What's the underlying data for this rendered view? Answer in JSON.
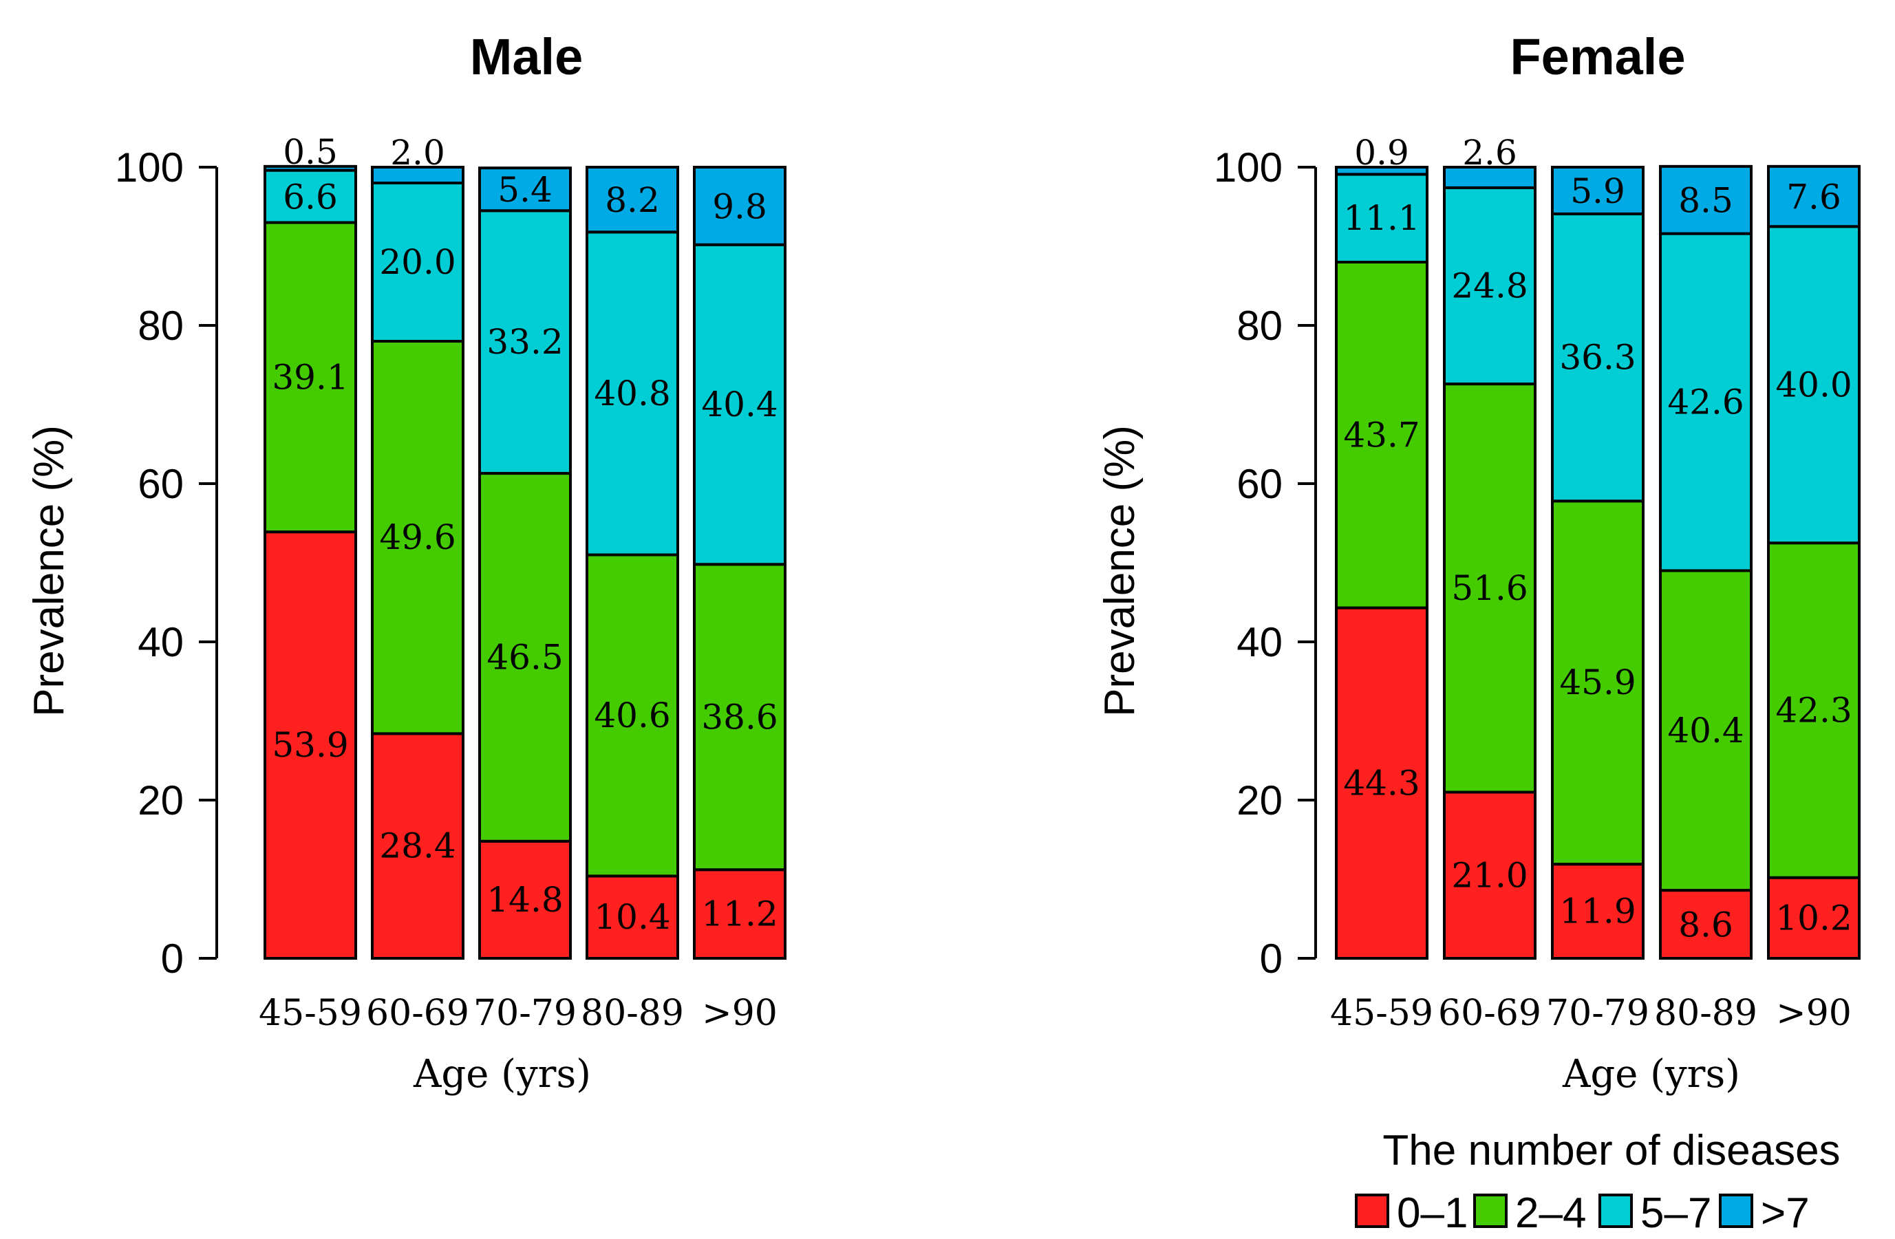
{
  "legend": {
    "title": "The number of diseases",
    "items": [
      {
        "label": "0–1",
        "color": "#ff2020"
      },
      {
        "label": "2–4",
        "color": "#44cc00"
      },
      {
        "label": "5–7",
        "color": "#00cdd4"
      },
      {
        "label": ">7",
        "color": "#00aae4"
      }
    ]
  },
  "chart_data": [
    {
      "type": "bar",
      "stacked": true,
      "title": "Male",
      "xlabel": "Age (yrs)",
      "ylabel": "Prevalence (%)",
      "ylim": [
        0,
        100
      ],
      "yticks": [
        "0",
        "20",
        "40",
        "60",
        "80",
        "100"
      ],
      "categories": [
        "45-59",
        "60-69",
        "70-79",
        "80-89",
        ">90"
      ],
      "series": [
        {
          "name": "0–1",
          "values": [
            53.9,
            28.4,
            14.8,
            10.4,
            11.2
          ],
          "labels": [
            "53.9",
            "28.4",
            "14.8",
            "10.4",
            "11.2"
          ]
        },
        {
          "name": "2–4",
          "values": [
            39.1,
            49.6,
            46.5,
            40.6,
            38.6
          ],
          "labels": [
            "39.1",
            "49.6",
            "46.5",
            "40.6",
            "38.6"
          ]
        },
        {
          "name": "5–7",
          "values": [
            6.6,
            20.0,
            33.2,
            40.8,
            40.4
          ],
          "labels": [
            "6.6",
            "20.0",
            "33.2",
            "40.8",
            "40.4"
          ]
        },
        {
          "name": ">7",
          "values": [
            0.5,
            2.0,
            5.4,
            8.2,
            9.8
          ],
          "labels": [
            "0.5",
            "2.0",
            "5.4",
            "8.2",
            "9.8"
          ]
        }
      ]
    },
    {
      "type": "bar",
      "stacked": true,
      "title": "Female",
      "xlabel": "Age (yrs)",
      "ylabel": "Prevalence (%)",
      "ylim": [
        0,
        100
      ],
      "yticks": [
        "0",
        "20",
        "40",
        "60",
        "80",
        "100"
      ],
      "categories": [
        "45-59",
        "60-69",
        "70-79",
        "80-89",
        ">90"
      ],
      "series": [
        {
          "name": "0–1",
          "values": [
            44.3,
            21.0,
            11.9,
            8.6,
            10.2
          ],
          "labels": [
            "44.3",
            "21.0",
            "11.9",
            "8.6",
            "10.2"
          ]
        },
        {
          "name": "2–4",
          "values": [
            43.7,
            51.6,
            45.9,
            40.4,
            42.3
          ],
          "labels": [
            "43.7",
            "51.6",
            "45.9",
            "40.4",
            "42.3"
          ]
        },
        {
          "name": "5–7",
          "values": [
            11.1,
            24.8,
            36.3,
            42.6,
            40.0
          ],
          "labels": [
            "11.1",
            "24.8",
            "36.3",
            "42.6",
            "40.0"
          ]
        },
        {
          "name": ">7",
          "values": [
            0.9,
            2.6,
            5.9,
            8.5,
            7.6
          ],
          "labels": [
            "0.9",
            "2.6",
            "5.9",
            "8.5",
            "7.6"
          ]
        }
      ]
    }
  ]
}
